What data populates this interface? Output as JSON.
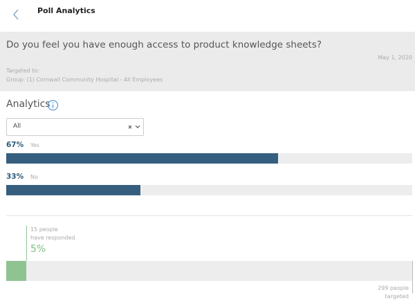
{
  "header": {
    "title": "Poll Analytics"
  },
  "poll": {
    "question": "Do you feel you have enough access to product knowledge sheets?",
    "date": "May 1, 2020",
    "targeted_label": "Targeted to:",
    "targeted_group": "Group: (1) Cornwall Community Hospital - All Employees"
  },
  "analytics": {
    "title": "Analytics",
    "filter": "All",
    "results": [
      {
        "label": "Yes",
        "value": 67,
        "value_label": "67%"
      },
      {
        "label": "No",
        "value": 33,
        "value_label": "33%"
      }
    ]
  },
  "response": {
    "responded_line1": "15 people",
    "responded_line2": "have responded",
    "value": 5,
    "value_label": "5%",
    "targeted_line1": "299 people",
    "targeted_line2": "targeted"
  }
}
